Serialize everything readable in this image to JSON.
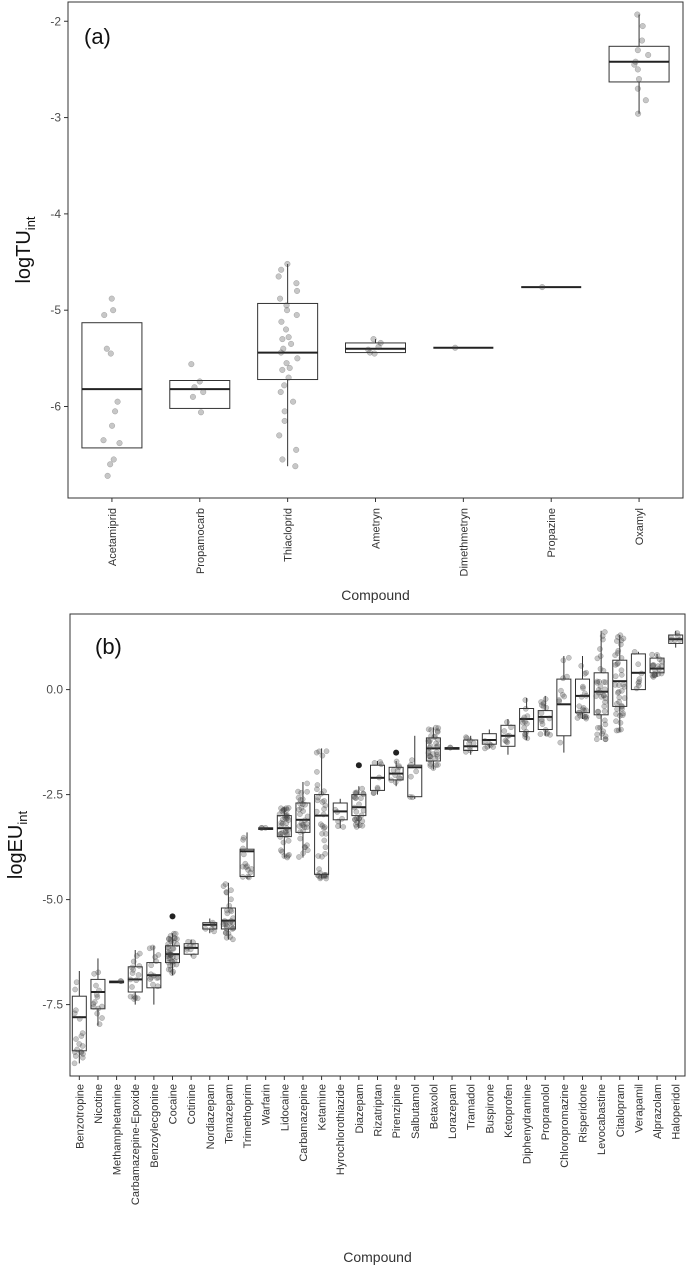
{
  "chart_data": [
    {
      "type": "box",
      "panel_label": "(a)",
      "ylabel": {
        "main": "logTU",
        "sub": "int"
      },
      "xlabel": "Compound",
      "ylim": [
        -6.95,
        -1.8
      ],
      "yticks": [
        -2,
        -3,
        -4,
        -5,
        -6
      ],
      "categories": [
        "Acetamiprid",
        "Propamocarb",
        "Thiacloprid",
        "Ametryn",
        "Dimethmetryn",
        "Propazine",
        "Oxamyl"
      ],
      "boxes": [
        {
          "q1": -6.43,
          "median": -5.82,
          "q3": -5.13,
          "lower": -6.43,
          "upper": -5.13,
          "points": [
            -4.88,
            -5.0,
            -5.05,
            -5.4,
            -5.45,
            -6.2,
            -6.35,
            -6.38,
            -6.55,
            -6.6,
            -6.72,
            -5.95,
            -6.05
          ]
        },
        {
          "q1": -6.02,
          "median": -5.82,
          "q3": -5.73,
          "lower": -6.02,
          "upper": -5.73,
          "points": [
            -5.56,
            -5.74,
            -5.8,
            -5.85,
            -5.9,
            -6.06
          ]
        },
        {
          "q1": -5.72,
          "median": -5.44,
          "q3": -4.93,
          "lower": -6.62,
          "upper": -4.52,
          "points": [
            -4.52,
            -4.58,
            -4.65,
            -4.72,
            -4.8,
            -4.88,
            -4.95,
            -5.05,
            -5.12,
            -5.2,
            -5.28,
            -5.35,
            -5.4,
            -5.44,
            -5.5,
            -5.55,
            -5.62,
            -5.7,
            -5.78,
            -5.85,
            -5.95,
            -6.05,
            -6.15,
            -6.3,
            -6.45,
            -6.55,
            -6.62,
            -5.0,
            -5.3,
            -5.6
          ]
        },
        {
          "q1": -5.44,
          "median": -5.4,
          "q3": -5.34,
          "lower": -5.44,
          "upper": -5.3,
          "points": [
            -5.3,
            -5.34,
            -5.38,
            -5.41,
            -5.44,
            -5.45
          ]
        },
        {
          "q1": -5.39,
          "median": -5.39,
          "q3": -5.39,
          "lower": -5.39,
          "upper": -5.39,
          "points": [
            -5.39
          ]
        },
        {
          "q1": -4.76,
          "median": -4.76,
          "q3": -4.76,
          "lower": -4.76,
          "upper": -4.76,
          "points": [
            -4.76
          ]
        },
        {
          "q1": -2.63,
          "median": -2.42,
          "q3": -2.26,
          "lower": -2.96,
          "upper": -1.93,
          "points": [
            -1.93,
            -2.05,
            -2.2,
            -2.35,
            -2.42,
            -2.5,
            -2.6,
            -2.7,
            -2.82,
            -2.96,
            -2.3,
            -2.45
          ]
        }
      ]
    },
    {
      "type": "box",
      "panel_label": "(b)",
      "ylabel": {
        "main": "logEU",
        "sub": "int"
      },
      "xlabel": "Compound",
      "ylim": [
        -9.2,
        1.8
      ],
      "yticks": [
        0.0,
        -2.5,
        -5.0,
        -7.5
      ],
      "ytick_labels": [
        "0.0",
        "-2.5",
        "-5.0",
        "-7.5"
      ],
      "categories": [
        "Benzotropine",
        "Nicotine",
        "Methamphetamine",
        "Carbamazepine-Epoxide",
        "Benzoylecgonine",
        "Cocaine",
        "Cotinine",
        "Nordiazepam",
        "Temazepam",
        "Trimethoprim",
        "Warfarin",
        "Lidocaine",
        "Carbamazepine",
        "Ketamine",
        "Hyrochlorothiazide",
        "Diazepam",
        "Rizatriptan",
        "Pirenzipine",
        "Salbutamol",
        "Betaxolol",
        "Lorazepam",
        "Tramadol",
        "Buspirone",
        "Ketoprofen",
        "Diphenydramine",
        "Propranolol",
        "Chloropromazine",
        "Risperidone",
        "Levocabastine",
        "Citalopram",
        "Verapamil",
        "Alprazolam",
        "Haloperidol"
      ],
      "boxes": [
        {
          "q1": -8.6,
          "median": -7.8,
          "q3": -7.3,
          "lower": -8.9,
          "upper": -6.7,
          "n": 18
        },
        {
          "q1": -7.6,
          "median": -7.2,
          "q3": -6.9,
          "lower": -8.0,
          "upper": -6.4,
          "n": 14
        },
        {
          "q1": -6.98,
          "median": -6.96,
          "q3": -6.94,
          "lower": -6.98,
          "upper": -6.94,
          "n": 2
        },
        {
          "q1": -7.2,
          "median": -6.9,
          "q3": -6.6,
          "lower": -7.5,
          "upper": -6.2,
          "n": 16
        },
        {
          "q1": -7.1,
          "median": -6.8,
          "q3": -6.5,
          "lower": -7.5,
          "upper": -6.1,
          "n": 14
        },
        {
          "q1": -6.5,
          "median": -6.3,
          "q3": -6.1,
          "lower": -6.8,
          "upper": -5.8,
          "n": 40,
          "outliers": [
            -5.4
          ]
        },
        {
          "q1": -6.3,
          "median": -6.15,
          "q3": -6.05,
          "lower": -6.35,
          "upper": -5.95,
          "n": 8
        },
        {
          "q1": -5.7,
          "median": -5.6,
          "q3": -5.55,
          "lower": -5.8,
          "upper": -5.45,
          "n": 6
        },
        {
          "q1": -5.7,
          "median": -5.5,
          "q3": -5.2,
          "lower": -5.95,
          "upper": -4.6,
          "n": 30
        },
        {
          "q1": -4.45,
          "median": -3.85,
          "q3": -3.8,
          "lower": -4.5,
          "upper": -3.4,
          "n": 14
        },
        {
          "q1": -3.33,
          "median": -3.31,
          "q3": -3.29,
          "lower": -3.33,
          "upper": -3.29,
          "n": 3
        },
        {
          "q1": -3.5,
          "median": -3.3,
          "q3": -3.0,
          "lower": -4.0,
          "upper": -2.8,
          "n": 40
        },
        {
          "q1": -3.4,
          "median": -3.1,
          "q3": -2.7,
          "lower": -4.0,
          "upper": -2.2,
          "n": 32
        },
        {
          "q1": -4.4,
          "median": -3.0,
          "q3": -2.5,
          "lower": -4.5,
          "upper": -1.4,
          "n": 40
        },
        {
          "q1": -3.1,
          "median": -2.9,
          "q3": -2.7,
          "lower": -3.3,
          "upper": -2.6,
          "n": 6
        },
        {
          "q1": -3.0,
          "median": -2.8,
          "q3": -2.5,
          "lower": -3.3,
          "upper": -2.3,
          "n": 26,
          "outliers": [
            -1.8
          ]
        },
        {
          "q1": -2.4,
          "median": -2.1,
          "q3": -1.8,
          "lower": -2.5,
          "upper": -1.7,
          "n": 8
        },
        {
          "q1": -2.15,
          "median": -2.0,
          "q3": -1.85,
          "lower": -2.3,
          "upper": -1.7,
          "n": 10,
          "outliers": [
            -1.5
          ]
        },
        {
          "q1": -2.55,
          "median": -1.85,
          "q3": -1.8,
          "lower": -2.6,
          "upper": -1.1,
          "n": 6
        },
        {
          "q1": -1.7,
          "median": -1.4,
          "q3": -1.15,
          "lower": -1.9,
          "upper": -0.9,
          "n": 34
        },
        {
          "q1": -1.42,
          "median": -1.4,
          "q3": -1.38,
          "lower": -1.42,
          "upper": -1.38,
          "n": 2
        },
        {
          "q1": -1.45,
          "median": -1.35,
          "q3": -1.2,
          "lower": -1.55,
          "upper": -1.1,
          "n": 8
        },
        {
          "q1": -1.3,
          "median": -1.2,
          "q3": -1.05,
          "lower": -1.4,
          "upper": -0.95,
          "n": 6
        },
        {
          "q1": -1.35,
          "median": -1.1,
          "q3": -0.85,
          "lower": -1.55,
          "upper": -0.7,
          "n": 8
        },
        {
          "q1": -1.0,
          "median": -0.7,
          "q3": -0.45,
          "lower": -1.2,
          "upper": -0.2,
          "n": 14
        },
        {
          "q1": -0.95,
          "median": -0.65,
          "q3": -0.5,
          "lower": -1.1,
          "upper": -0.15,
          "n": 16
        },
        {
          "q1": -1.1,
          "median": -0.35,
          "q3": 0.25,
          "lower": -1.5,
          "upper": 0.8,
          "n": 10
        },
        {
          "q1": -0.55,
          "median": -0.15,
          "q3": 0.25,
          "lower": -0.7,
          "upper": 0.8,
          "n": 22
        },
        {
          "q1": -0.6,
          "median": -0.05,
          "q3": 0.4,
          "lower": -1.2,
          "upper": 1.4,
          "n": 40
        },
        {
          "q1": -0.4,
          "median": 0.2,
          "q3": 0.7,
          "lower": -1.0,
          "upper": 1.3,
          "n": 40
        },
        {
          "q1": 0.0,
          "median": 0.4,
          "q3": 0.85,
          "lower": 0.0,
          "upper": 0.9,
          "n": 8
        },
        {
          "q1": 0.4,
          "median": 0.5,
          "q3": 0.75,
          "lower": 0.3,
          "upper": 0.85,
          "n": 18
        },
        {
          "q1": 1.1,
          "median": 1.2,
          "q3": 1.3,
          "lower": 1.0,
          "upper": 1.4,
          "n": 6
        }
      ]
    }
  ]
}
